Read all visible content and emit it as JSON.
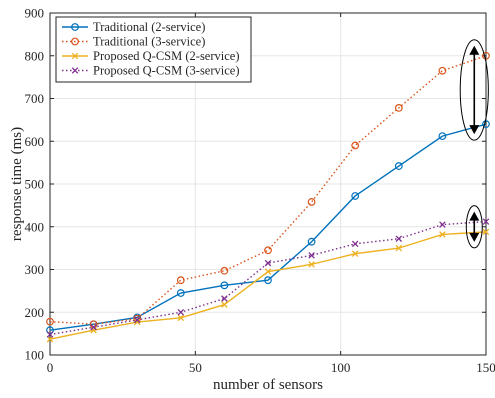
{
  "chart_data": {
    "type": "line",
    "title": "",
    "xlabel": "number of sensors",
    "ylabel": "response time (ms)",
    "xlim": [
      0,
      150
    ],
    "ylim": [
      100,
      900
    ],
    "xticks": [
      0,
      50,
      100,
      150
    ],
    "yticks": [
      100,
      200,
      300,
      400,
      500,
      600,
      700,
      800,
      900
    ],
    "grid": true,
    "legend_position": "top-left",
    "series": [
      {
        "name": "Traditional (2-service)",
        "color": "#0072BD",
        "line_style": "solid",
        "marker": "circle",
        "x": [
          0,
          15,
          30,
          45,
          60,
          75,
          90,
          105,
          120,
          135,
          150
        ],
        "y": [
          158,
          172,
          188,
          245,
          263,
          275,
          365,
          472,
          542,
          612,
          640
        ]
      },
      {
        "name": "Traditional (3-service)",
        "color": "#D95319",
        "line_style": "dotted",
        "marker": "circle",
        "x": [
          0,
          15,
          30,
          45,
          60,
          75,
          90,
          105,
          120,
          135,
          150
        ],
        "y": [
          178,
          172,
          185,
          275,
          297,
          345,
          458,
          590,
          678,
          765,
          800
        ]
      },
      {
        "name": "Proposed Q-CSM (2-service)",
        "color": "#EDB120",
        "line_style": "solid",
        "marker": "x",
        "x": [
          0,
          15,
          30,
          45,
          60,
          75,
          90,
          105,
          120,
          135,
          150
        ],
        "y": [
          137,
          158,
          177,
          187,
          218,
          295,
          312,
          337,
          350,
          382,
          388
        ]
      },
      {
        "name": "Proposed Q-CSM (3-service)",
        "color": "#7E2F8E",
        "line_style": "dotted",
        "marker": "x",
        "x": [
          0,
          15,
          30,
          45,
          60,
          75,
          90,
          105,
          120,
          135,
          150
        ],
        "y": [
          148,
          165,
          182,
          200,
          232,
          315,
          333,
          360,
          372,
          405,
          412
        ]
      }
    ],
    "annotations": [
      {
        "type": "ellipse-double-arrow",
        "x": 147,
        "y_from": 640,
        "y_to": 800
      },
      {
        "type": "ellipse-double-arrow",
        "x": 147,
        "y_from": 388,
        "y_to": 412
      }
    ]
  }
}
